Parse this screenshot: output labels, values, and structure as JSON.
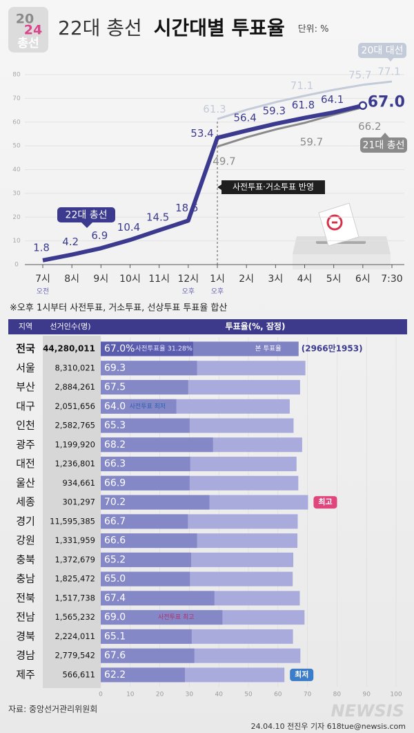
{
  "header": {
    "logo_top": "20",
    "logo_bottom": "24",
    "logo_label": "총선",
    "title": "22대 총선",
    "title_bold": "시간대별 투표율",
    "unit": "단위: %"
  },
  "chart_data": {
    "type": "line",
    "categories": [
      "7시",
      "8시",
      "9시",
      "10시",
      "11시",
      "12시",
      "1시",
      "2시",
      "3시",
      "4시",
      "5시",
      "6시",
      "7:30"
    ],
    "category_notes": [
      "오전",
      null,
      null,
      null,
      null,
      "오후",
      "오후",
      null,
      null,
      null,
      null,
      null,
      null
    ],
    "series": [
      {
        "name": "22대 총선",
        "color": "#3b3a8e",
        "values": [
          1.8,
          4.2,
          6.9,
          10.4,
          14.5,
          18.5,
          53.4,
          56.4,
          59.3,
          61.8,
          64.1,
          67.0,
          null
        ],
        "value_labels": [
          "1.8",
          "4.2",
          "6.9",
          "10.4",
          "14.5",
          "18.5",
          "53.4",
          "56.4",
          "59.3",
          "61.8",
          "64.1",
          "67.0",
          null
        ]
      },
      {
        "name": "20대 대선",
        "color": "#c3cad8",
        "values": [
          null,
          null,
          null,
          null,
          null,
          null,
          61.3,
          65.2,
          68.4,
          71.1,
          73.6,
          75.7,
          77.1
        ],
        "value_labels": [
          null,
          null,
          null,
          null,
          null,
          null,
          "61.3",
          null,
          null,
          "71.1",
          null,
          "75.7",
          "77.1"
        ]
      },
      {
        "name": "21대 총선",
        "color": "#8a8a8a",
        "values": [
          null,
          null,
          null,
          null,
          null,
          null,
          49.7,
          53.6,
          56.9,
          59.7,
          63.1,
          66.2,
          null
        ],
        "value_labels": [
          null,
          null,
          null,
          null,
          null,
          null,
          "49.7",
          null,
          null,
          "59.7",
          null,
          "66.2",
          null
        ]
      }
    ],
    "ylim": [
      0,
      80
    ],
    "yticks": [
      0,
      10,
      20,
      30,
      40,
      50,
      60,
      70,
      80
    ],
    "grid": true,
    "annotation": "사전투표·거소투표 반영",
    "note": "※오후 1시부터 사전투표, 거소투표, 선상투표 투표율 합산"
  },
  "table": {
    "columns": [
      "지역",
      "선거인수(명)",
      "투표율(%, 잠정)"
    ],
    "xlim": [
      0,
      100
    ],
    "xticks": [
      0,
      10,
      20,
      30,
      40,
      50,
      60,
      70,
      80,
      90,
      100
    ],
    "bar_color": "#a9abdc",
    "early_color": "#8588c7",
    "rows": [
      {
        "region": "전국",
        "voters": "44,280,011",
        "turnout": 67.0,
        "turnout_label": "67.0%",
        "early": 31.28,
        "early_label": "사전투표율 31.28%",
        "main_label": "본 투표율",
        "votes": "(2966만1953)"
      },
      {
        "region": "서울",
        "voters": "8,310,021",
        "turnout": 69.3,
        "turnout_label": "69.3",
        "early": 32.6
      },
      {
        "region": "부산",
        "voters": "2,884,261",
        "turnout": 67.5,
        "turnout_label": "67.5",
        "early": 29.6
      },
      {
        "region": "대구",
        "voters": "2,051,656",
        "turnout": 64.0,
        "turnout_label": "64.0",
        "early": 25.6,
        "note": "사전투표 최저",
        "note_color": "#2d5fb0"
      },
      {
        "region": "인천",
        "voters": "2,582,765",
        "turnout": 65.3,
        "turnout_label": "65.3",
        "early": 30.1
      },
      {
        "region": "광주",
        "voters": "1,199,920",
        "turnout": 68.2,
        "turnout_label": "68.2",
        "early": 38.0
      },
      {
        "region": "대전",
        "voters": "1,236,801",
        "turnout": 66.3,
        "turnout_label": "66.3",
        "early": 30.3
      },
      {
        "region": "울산",
        "voters": "934,661",
        "turnout": 66.9,
        "turnout_label": "66.9",
        "early": 30.1
      },
      {
        "region": "세종",
        "voters": "301,297",
        "turnout": 70.2,
        "turnout_label": "70.2",
        "early": 36.8,
        "badge": "최고",
        "badge_color": "#e0457b"
      },
      {
        "region": "경기",
        "voters": "11,595,385",
        "turnout": 66.7,
        "turnout_label": "66.7",
        "early": 29.5
      },
      {
        "region": "강원",
        "voters": "1,331,959",
        "turnout": 66.6,
        "turnout_label": "66.6",
        "early": 32.6
      },
      {
        "region": "충북",
        "voters": "1,372,679",
        "turnout": 65.2,
        "turnout_label": "65.2",
        "early": 30.6
      },
      {
        "region": "충남",
        "voters": "1,825,472",
        "turnout": 65.0,
        "turnout_label": "65.0",
        "early": 30.2
      },
      {
        "region": "전북",
        "voters": "1,517,738",
        "turnout": 67.4,
        "turnout_label": "67.4",
        "early": 38.5
      },
      {
        "region": "전남",
        "voters": "1,565,232",
        "turnout": 69.0,
        "turnout_label": "69.0",
        "early": 41.2,
        "note": "사전투표 최고",
        "note_color": "#b0306a"
      },
      {
        "region": "경북",
        "voters": "2,224,011",
        "turnout": 65.1,
        "turnout_label": "65.1",
        "early": 30.8
      },
      {
        "region": "경남",
        "voters": "2,779,542",
        "turnout": 67.6,
        "turnout_label": "67.6",
        "early": 31.7
      },
      {
        "region": "제주",
        "voters": "566,611",
        "turnout": 62.2,
        "turnout_label": "62.2",
        "early": 28.5,
        "badge": "최저",
        "badge_color": "#3b7dc8"
      }
    ]
  },
  "footer": {
    "source": "자료: 중앙선거관리위원회",
    "credit": "24.04.10 전진우 기자 618tue@newsis.com",
    "watermark": "NEWSIS"
  }
}
